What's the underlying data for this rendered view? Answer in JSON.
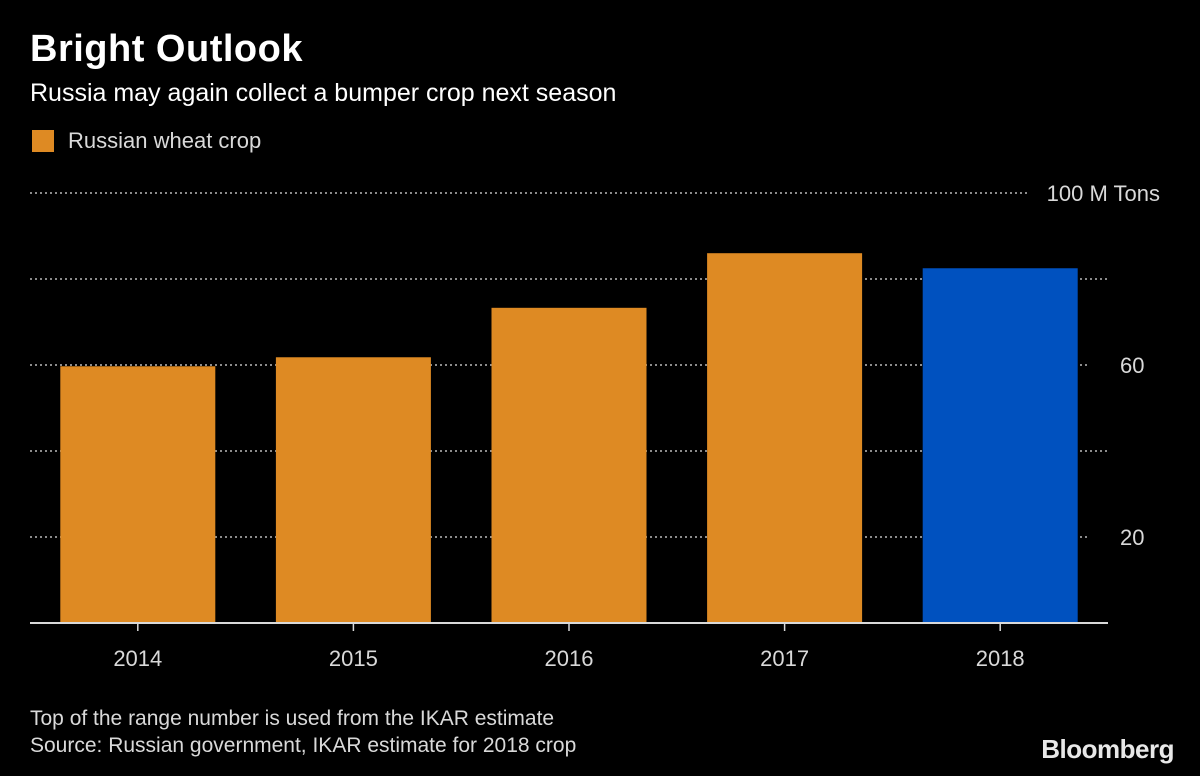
{
  "header": {
    "title": "Bright Outlook",
    "subtitle": "Russia may again collect a bumper crop next season"
  },
  "legend": {
    "label": "Russian wheat crop"
  },
  "colors": {
    "background": "#000000",
    "bar_actual": "#de8a23",
    "bar_estimate": "#0051bf",
    "gridline": "#8c8c8c",
    "text": "#ffffff",
    "muted_text": "#d9d9d9"
  },
  "chart_data": {
    "type": "bar",
    "categories": [
      "2014",
      "2015",
      "2016",
      "2017",
      "2018"
    ],
    "series": [
      {
        "name": "Russian wheat crop",
        "values": [
          59.7,
          61.8,
          73.3,
          86.0,
          82.5
        ]
      }
    ],
    "highlight_index": 4,
    "ylim": [
      0,
      100
    ],
    "yticks": [
      {
        "value": 100,
        "label": "100 M Tons"
      },
      {
        "value": 80,
        "label": ""
      },
      {
        "value": 60,
        "label": "60"
      },
      {
        "value": 40,
        "label": ""
      },
      {
        "value": 20,
        "label": "20"
      }
    ],
    "grid": true,
    "legend_placement": "top-left"
  },
  "footer": {
    "note": "Top of the range number is used from the IKAR estimate",
    "source": "Source: Russian government, IKAR estimate for 2018 crop",
    "brand": "Bloomberg"
  }
}
